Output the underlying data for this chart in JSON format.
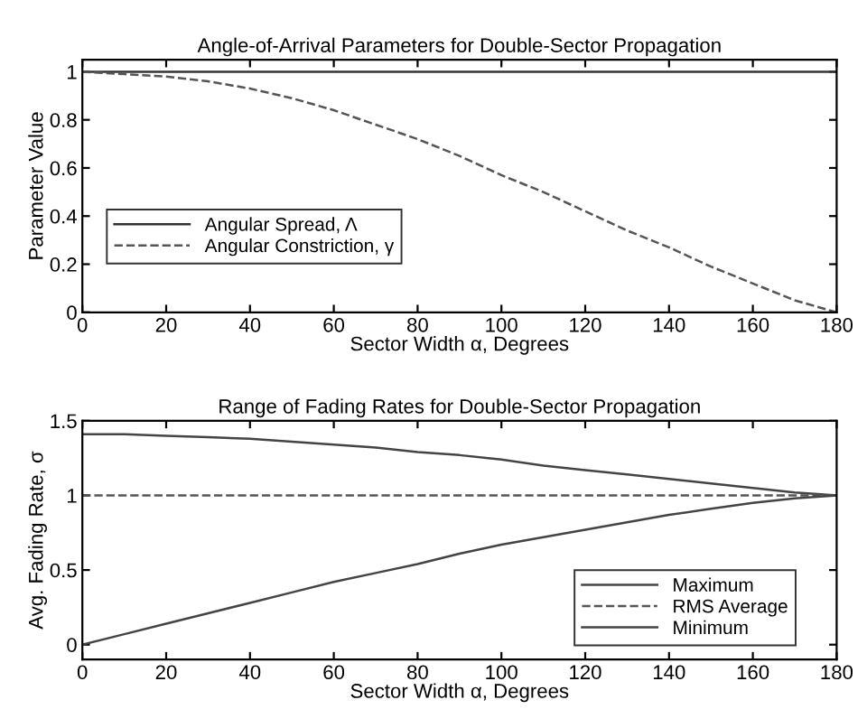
{
  "chart_data": [
    {
      "type": "line",
      "title": "Angle-of-Arrival Parameters for Double-Sector Propagation",
      "xlabel": "Sector Width α, Degrees",
      "ylabel": "Parameter Value",
      "x": [
        0,
        10,
        20,
        30,
        40,
        50,
        60,
        70,
        80,
        90,
        100,
        110,
        120,
        130,
        140,
        150,
        160,
        170,
        180
      ],
      "series": [
        {
          "name": "Angular Spread, Λ",
          "color": "#333333",
          "line_style": "solid",
          "values": [
            1,
            1,
            1,
            1,
            1,
            1,
            1,
            1,
            1,
            1,
            1,
            1,
            1,
            1,
            1,
            1,
            1,
            1,
            1
          ]
        },
        {
          "name": "Angular Constriction, γ",
          "color": "#555555",
          "line_style": "dashed",
          "values": [
            1,
            0.99,
            0.98,
            0.96,
            0.93,
            0.89,
            0.84,
            0.78,
            0.72,
            0.65,
            0.57,
            0.5,
            0.42,
            0.34,
            0.27,
            0.19,
            0.12,
            0.05,
            0.0
          ]
        }
      ],
      "xlim": [
        0,
        180
      ],
      "xticks": [
        0,
        20,
        40,
        60,
        80,
        100,
        120,
        140,
        160,
        180
      ],
      "ylim": [
        0,
        1.05
      ],
      "yticks": [
        0,
        0.2,
        0.4,
        0.6,
        0.8,
        1
      ],
      "grid": false,
      "legend": "center left",
      "marker": "none"
    },
    {
      "type": "line",
      "title": "Range of Fading Rates for Double-Sector Propagation",
      "xlabel": "Sector Width α, Degrees",
      "ylabel": "Avg. Fading Rate, σ",
      "x": [
        0,
        10,
        20,
        30,
        40,
        50,
        60,
        70,
        80,
        90,
        100,
        110,
        120,
        130,
        140,
        150,
        160,
        170,
        180
      ],
      "series": [
        {
          "name": "Maximum",
          "color": "#444444",
          "line_style": "solid",
          "values": [
            1.41,
            1.41,
            1.4,
            1.39,
            1.38,
            1.36,
            1.34,
            1.32,
            1.29,
            1.27,
            1.24,
            1.2,
            1.17,
            1.14,
            1.11,
            1.08,
            1.05,
            1.02,
            1.0
          ]
        },
        {
          "name": "RMS Average",
          "color": "#555555",
          "line_style": "dashed",
          "values": [
            1,
            1,
            1,
            1,
            1,
            1,
            1,
            1,
            1,
            1,
            1,
            1,
            1,
            1,
            1,
            1,
            1,
            1,
            1
          ]
        },
        {
          "name": "Minimum",
          "color": "#444444",
          "line_style": "solid",
          "values": [
            0.0,
            0.07,
            0.14,
            0.21,
            0.28,
            0.35,
            0.42,
            0.48,
            0.54,
            0.61,
            0.67,
            0.72,
            0.77,
            0.82,
            0.87,
            0.91,
            0.95,
            0.98,
            1.0
          ]
        }
      ],
      "xlim": [
        0,
        180
      ],
      "xticks": [
        0,
        20,
        40,
        60,
        80,
        100,
        120,
        140,
        160,
        180
      ],
      "ylim": [
        -0.1,
        1.5
      ],
      "yticks": [
        0,
        0.5,
        1,
        1.5
      ],
      "grid": false,
      "legend": "lower right",
      "marker": "none"
    }
  ]
}
